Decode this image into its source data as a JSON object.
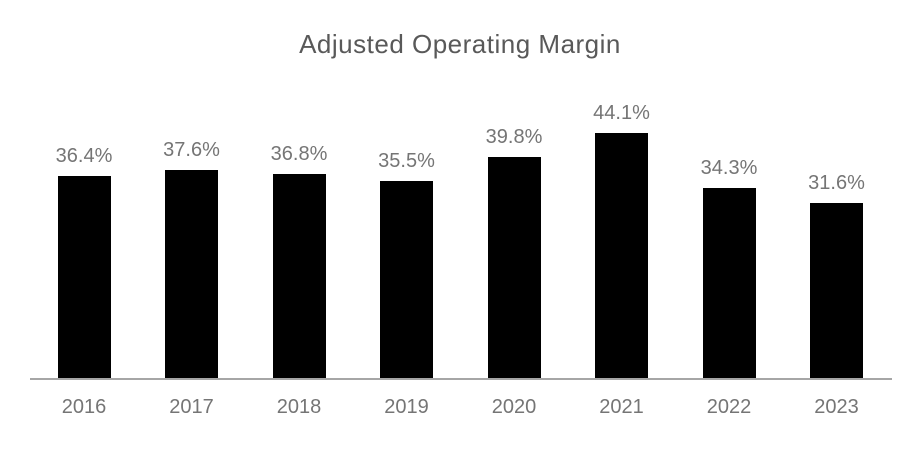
{
  "chart_data": {
    "type": "bar",
    "title": "Adjusted Operating Margin",
    "categories": [
      "2016",
      "2017",
      "2018",
      "2019",
      "2020",
      "2021",
      "2022",
      "2023"
    ],
    "values": [
      36.4,
      37.6,
      36.8,
      35.5,
      39.8,
      44.1,
      34.3,
      31.6
    ],
    "value_labels": [
      "36.4%",
      "37.6%",
      "36.8%",
      "35.5%",
      "39.8%",
      "44.1%",
      "34.3%",
      "31.6%"
    ],
    "xlabel": "",
    "ylabel": "",
    "ylim": [
      0,
      50
    ],
    "grid": false,
    "legend": false,
    "data_labels_position": "above-bars",
    "bar_color": "#000000",
    "title_color": "#595959",
    "label_color": "#757575",
    "axis_line_color": "#a6a6a6",
    "background_color": "#ffffff"
  }
}
